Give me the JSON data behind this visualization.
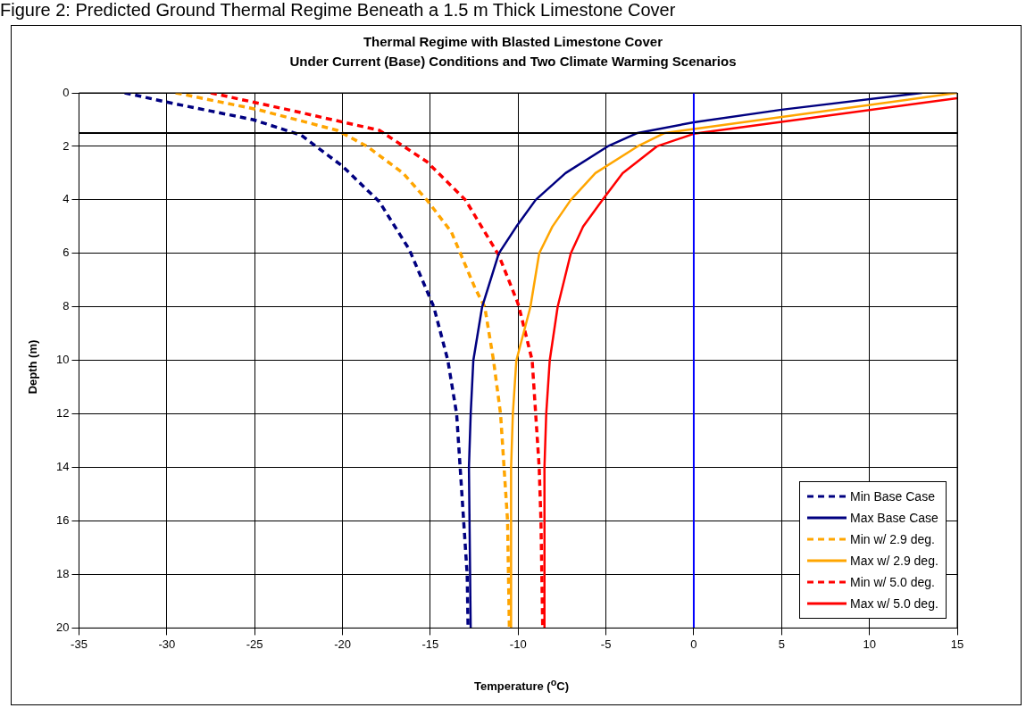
{
  "chart_data": {
    "type": "line",
    "title": "Thermal Regime with Blasted Limestone Cover\nUnder Current (Base) Conditions and Two Climate Warming Scenarios",
    "annotations": [
      "Figure 2: Predicted Ground Thermal Regime Beneath a 1.5 m Thick Limestone Cover"
    ],
    "xlabel": "Temperature ($^{o}$C)",
    "ylabel": "Depth (m)",
    "xlim": [
      -35,
      15
    ],
    "xticks": [
      -35,
      -30,
      -25,
      -20,
      -15,
      -10,
      -5,
      0,
      5,
      10,
      15
    ],
    "ylim": [
      20,
      0
    ],
    "yticks": [
      0,
      2,
      4,
      6,
      8,
      10,
      12,
      14,
      16,
      18,
      20
    ],
    "grid": true,
    "legend": "bottom right",
    "marker": "none",
    "ref_lines": [
      {
        "axis": "y",
        "value": 1.5,
        "label": null,
        "color": "#000000"
      },
      {
        "axis": "x",
        "value": 0,
        "label": null,
        "color": "#0000ff"
      }
    ],
    "series": [
      {
        "name": "Min Base Case",
        "color": "#000080",
        "line_style": "dashed",
        "x": [
          -32.4,
          -29.9,
          -25.1,
          -22.35,
          -20.0,
          -17.9,
          -16.2,
          -14.8,
          -14.0,
          -13.5,
          -13.3,
          -13.1,
          -12.9,
          -12.85
        ],
        "values": [
          0,
          0.36,
          1.0,
          1.58,
          2.74,
          4.07,
          5.85,
          8,
          10,
          12,
          14,
          16,
          18,
          20
        ]
      },
      {
        "name": "Max Base Case",
        "color": "#000080",
        "line_style": "solid",
        "x": [
          13.0,
          5.0,
          0,
          -3.2,
          -4.9,
          -7.3,
          -9.0,
          -10.1,
          -11.1,
          -12.05,
          -12.55,
          -12.7,
          -12.8,
          -12.7
        ],
        "values": [
          0,
          0.63,
          1.1,
          1.5,
          2,
          3,
          4,
          5,
          6,
          8,
          10,
          12,
          14,
          20
        ]
      },
      {
        "name": "Min w/ 2.9 deg.",
        "color": "#ffa500",
        "line_style": "dashed",
        "x": [
          -29.5,
          -24.8,
          -20.3,
          -18.6,
          -16.55,
          -15.2,
          -13.8,
          -12.45,
          -11.9,
          -11.4,
          -11.0,
          -10.8,
          -10.6,
          -10.55,
          -10.5
        ],
        "values": [
          0,
          0.63,
          1.4,
          2.0,
          3.0,
          4.0,
          5.2,
          7.3,
          8,
          10,
          12,
          14,
          16,
          18,
          20
        ]
      },
      {
        "name": "Max w/ 2.9 deg.",
        "color": "#ffa500",
        "line_style": "solid",
        "x": [
          15,
          0,
          -1.65,
          -3.2,
          -5.6,
          -7.0,
          -8.05,
          -8.8,
          -9.3,
          -10.1,
          -10.3,
          -10.4,
          -10.4
        ],
        "values": [
          0,
          1.35,
          1.5,
          2,
          3,
          4,
          5,
          6,
          8,
          10,
          12,
          14,
          20
        ]
      },
      {
        "name": "Min w/ 5.0 deg.",
        "color": "#ff0000",
        "line_style": "dashed",
        "x": [
          -27.5,
          -23.1,
          -17.9,
          -15.2,
          -13.0,
          -11.1,
          -10.05,
          -9.95,
          -9.2,
          -9.0,
          -8.8,
          -8.7,
          -8.65,
          -8.6
        ],
        "values": [
          0,
          0.63,
          1.4,
          2.57,
          4.0,
          6.07,
          7.8,
          8,
          10,
          12,
          14,
          16,
          18,
          20
        ]
      },
      {
        "name": "Max w/ 5.0 deg.",
        "color": "#ff0000",
        "line_style": "solid",
        "x": [
          15,
          0,
          -2.1,
          -4.05,
          -5.2,
          -6.3,
          -7.0,
          -7.75,
          -8.2,
          -8.4,
          -8.5,
          -8.5
        ],
        "values": [
          0.2,
          1.53,
          2,
          3,
          4,
          5,
          6,
          8,
          10,
          12,
          14,
          20
        ]
      }
    ]
  }
}
